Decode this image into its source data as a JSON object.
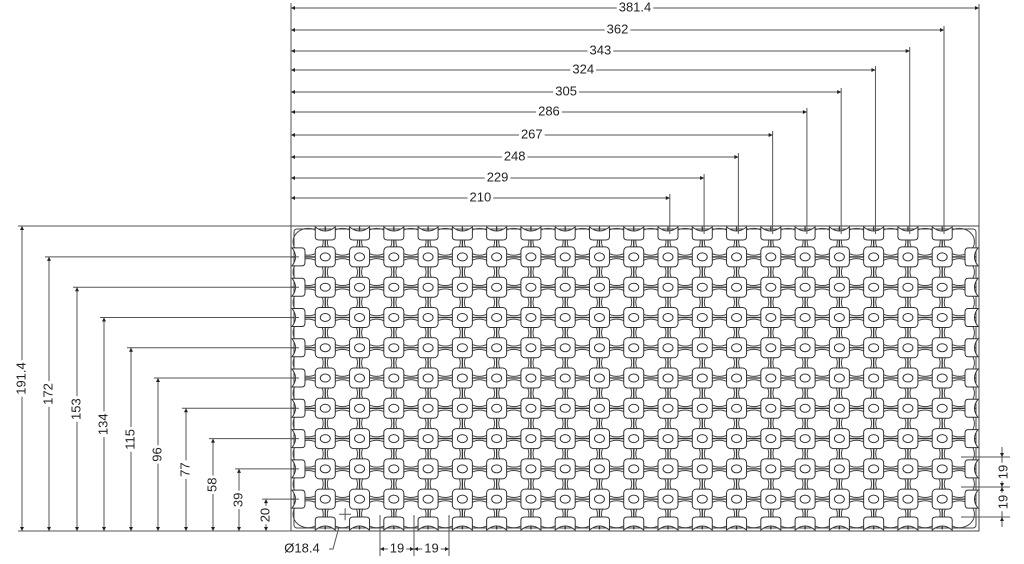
{
  "drawing": {
    "overall_width_dim": "381.4",
    "overall_height_dim": "191.4",
    "top_dims": [
      "381.4",
      "362",
      "343",
      "324",
      "305",
      "286",
      "267",
      "248",
      "229",
      "210"
    ],
    "left_dims": [
      "191.4",
      "172",
      "153",
      "134",
      "115",
      "96",
      "77",
      "58",
      "39",
      "20"
    ],
    "hole_diameter": "Ø18.4",
    "bottom_pitch_dims": [
      "19",
      "19"
    ],
    "right_pitch_dims": [
      "19",
      "19"
    ],
    "pad_columns": 19,
    "pad_rows": 9,
    "pitch": 19
  }
}
